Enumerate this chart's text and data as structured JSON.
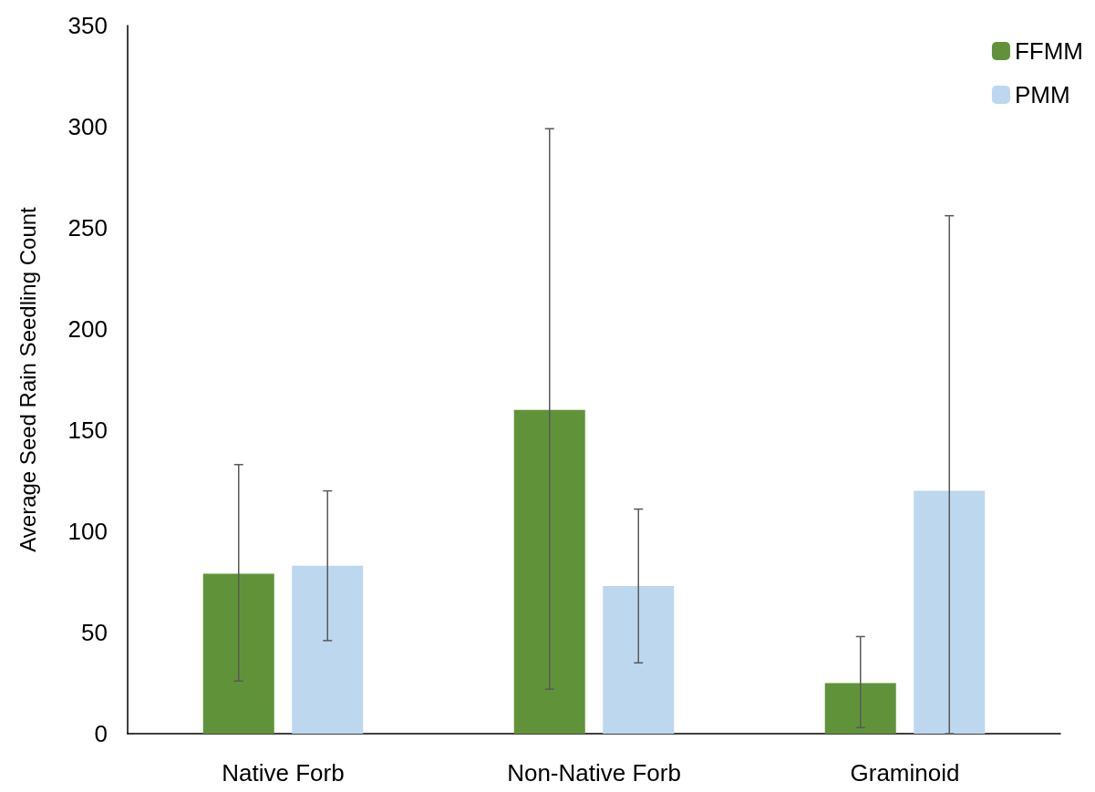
{
  "chart_data": {
    "type": "bar",
    "ylabel": "Average Seed Rain Seedling Count",
    "categories": [
      "Native Forb",
      "Non-Native Forb",
      "Graminoid"
    ],
    "series": [
      {
        "name": "FFMM",
        "color": "#609339",
        "values": [
          79,
          160,
          25
        ],
        "errors": [
          [
            26,
            133
          ],
          [
            22,
            299
          ],
          [
            3,
            48
          ]
        ]
      },
      {
        "name": "PMM",
        "color": "#bdd7ee",
        "values": [
          83,
          73,
          120
        ],
        "errors": [
          [
            46,
            120
          ],
          [
            35,
            111
          ],
          [
            0,
            256
          ]
        ]
      }
    ],
    "ylim": [
      0,
      350
    ],
    "yticks": [
      0,
      50,
      100,
      150,
      200,
      250,
      300,
      350
    ],
    "grid": false,
    "legend": "top right"
  }
}
